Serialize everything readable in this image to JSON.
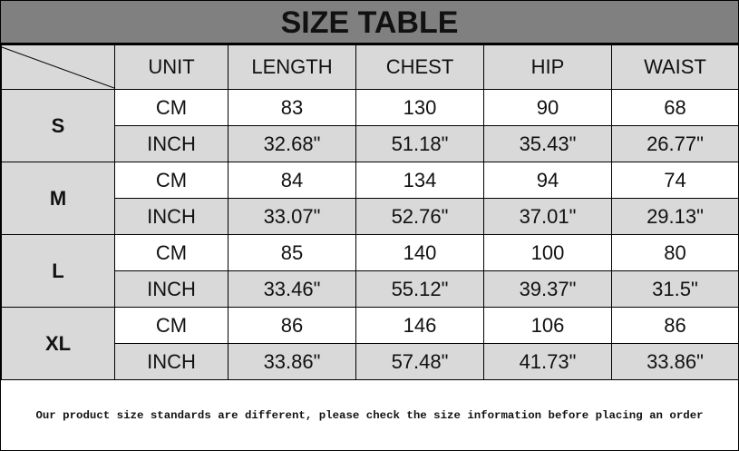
{
  "title": "SIZE TABLE",
  "headers": [
    "UNIT",
    "LENGTH",
    "CHEST",
    "HIP",
    "WAIST"
  ],
  "sizes": [
    {
      "size": "S",
      "cm": {
        "unit": "CM",
        "values": [
          "83",
          "130",
          "90",
          "68"
        ]
      },
      "inch": {
        "unit": "INCH",
        "values": [
          "32.68\"",
          "51.18\"",
          "35.43\"",
          "26.77\""
        ]
      }
    },
    {
      "size": "M",
      "cm": {
        "unit": "CM",
        "values": [
          "84",
          "134",
          "94",
          "74"
        ]
      },
      "inch": {
        "unit": "INCH",
        "values": [
          "33.07\"",
          "52.76\"",
          "37.01\"",
          "29.13\""
        ]
      }
    },
    {
      "size": "L",
      "cm": {
        "unit": "CM",
        "values": [
          "85",
          "140",
          "100",
          "80"
        ]
      },
      "inch": {
        "unit": "INCH",
        "values": [
          "33.46\"",
          "55.12\"",
          "39.37\"",
          "31.5\""
        ]
      }
    },
    {
      "size": "XL",
      "cm": {
        "unit": "CM",
        "values": [
          "86",
          "146",
          "106",
          "86"
        ]
      },
      "inch": {
        "unit": "INCH",
        "values": [
          "33.86\"",
          "57.48\"",
          "41.73\"",
          "33.86\""
        ]
      }
    }
  ],
  "footer": "Our product size standards are different, please check the size information before placing an order"
}
